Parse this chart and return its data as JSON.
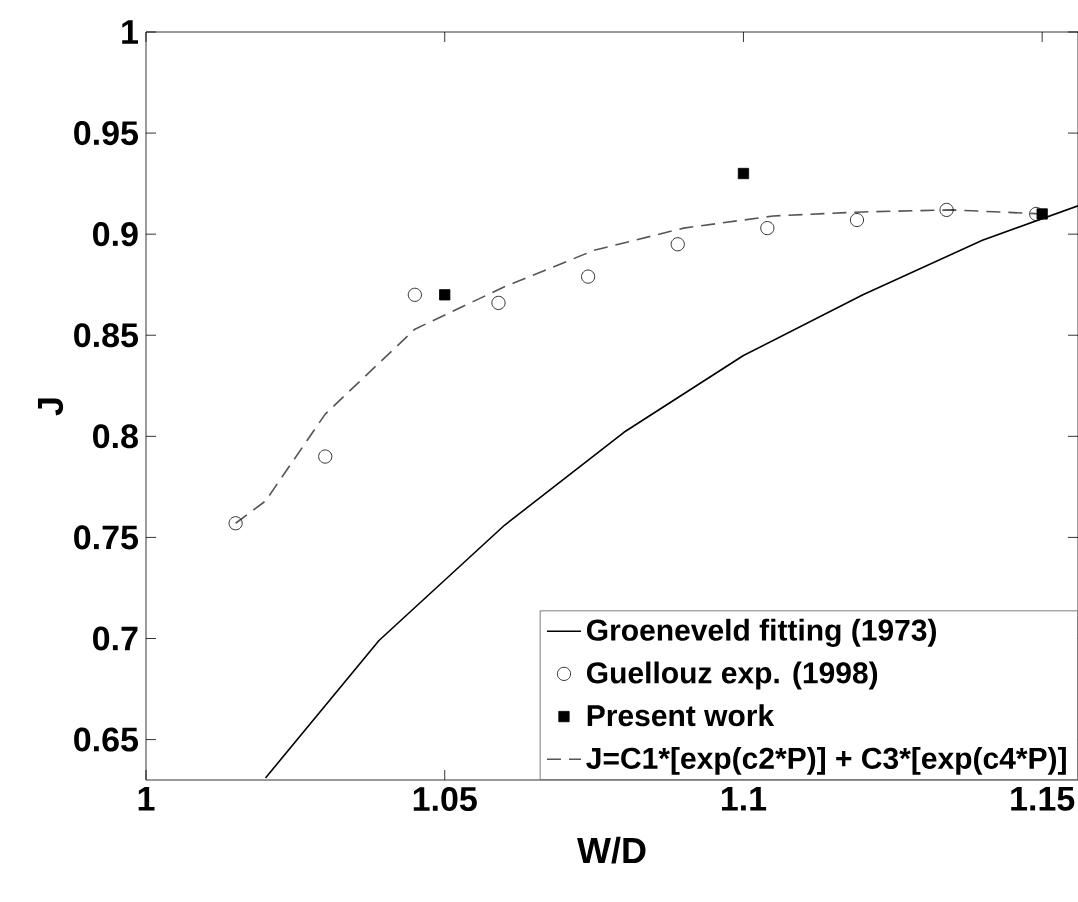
{
  "chart_data": {
    "type": "line",
    "xlabel": "W/D",
    "ylabel": "J",
    "xlim": [
      1,
      1.156
    ],
    "ylim": [
      0.63,
      1
    ],
    "xticks": [
      1,
      1.05,
      1.1,
      1.15
    ],
    "yticks": [
      0.65,
      0.7,
      0.75,
      0.8,
      0.85,
      0.9,
      0.95,
      1
    ],
    "grid": false,
    "legend": "bottom right",
    "series": [
      {
        "name": "Groeneveld fitting (1973)",
        "marker": "none",
        "line_style": "solid",
        "color": "#000000",
        "x": [
          1.02,
          1.039,
          1.06,
          1.08,
          1.1,
          1.12,
          1.14,
          1.156
        ],
        "values": [
          0.631,
          0.699,
          0.756,
          0.802,
          0.84,
          0.87,
          0.897,
          0.914
        ]
      },
      {
        "name": "Guellouz exp. (1998)",
        "type": "scatter",
        "marker": "circle",
        "color": "#000000",
        "x": [
          1.015,
          1.03,
          1.045,
          1.059,
          1.074,
          1.089,
          1.104,
          1.119,
          1.134,
          1.149
        ],
        "values": [
          0.757,
          0.79,
          0.87,
          0.866,
          0.879,
          0.895,
          0.903,
          0.907,
          0.912,
          0.91
        ]
      },
      {
        "name": "Present work",
        "type": "scatter",
        "marker": "square",
        "color": "#000000",
        "x": [
          1.05,
          1.1,
          1.15
        ],
        "values": [
          0.87,
          0.93,
          0.91
        ]
      },
      {
        "name": "J=C1*[exp(c2*P)] + C3*[exp(c4*P)]",
        "marker": "none",
        "line_style": "dashed",
        "color": "#555555",
        "x": [
          1.015,
          1.02,
          1.03,
          1.045,
          1.06,
          1.075,
          1.09,
          1.105,
          1.12,
          1.135,
          1.15
        ],
        "values": [
          0.757,
          0.768,
          0.811,
          0.853,
          0.874,
          0.892,
          0.903,
          0.909,
          0.911,
          0.912,
          0.91
        ]
      }
    ]
  }
}
